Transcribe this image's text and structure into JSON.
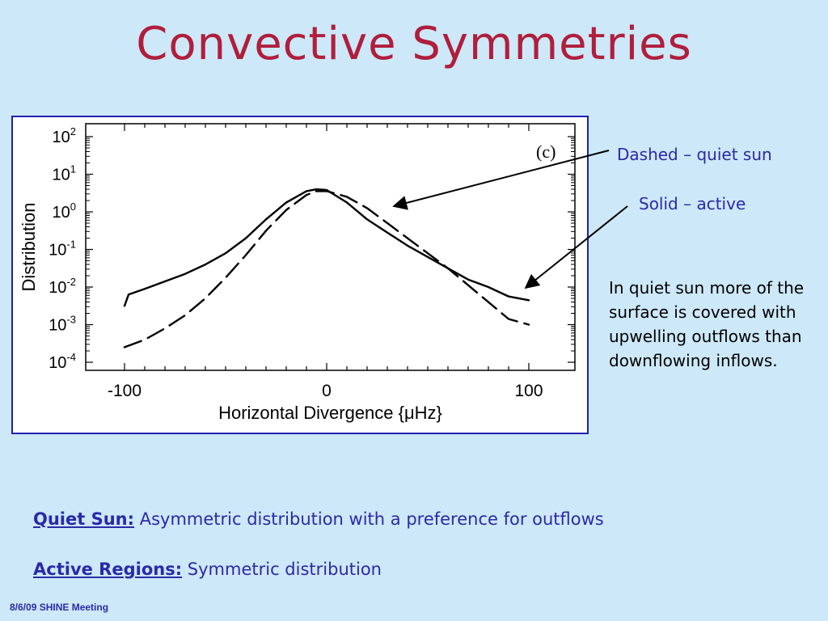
{
  "slide": {
    "title": "Convective Symmetries",
    "footer": "8/6/09 SHINE Meeting"
  },
  "annotations": {
    "dashed": "Dashed – quiet sun",
    "solid": "Solid – active",
    "note": "In quiet sun more of the surface is covered with upwelling outflows than downflowing inflows."
  },
  "summary": {
    "quiet_label": "Quiet Sun:",
    "quiet_text": "Asymmetric distribution with a preference for outflows",
    "active_label": "Active Regions:",
    "active_text": "Symmetric distribution"
  },
  "chart_data": {
    "type": "line",
    "panel_label": "(c)",
    "xlabel": "Horizontal Divergence {μHz}",
    "ylabel": "Distribution",
    "xlim": [
      -100,
      100
    ],
    "ylim_log10": [
      -4,
      2
    ],
    "y_scale": "log",
    "x_ticks": [
      "-100",
      "0",
      "100"
    ],
    "y_ticks": [
      {
        "base": "10",
        "exp": "2",
        "value": 2
      },
      {
        "base": "10",
        "exp": "1",
        "value": 1
      },
      {
        "base": "10",
        "exp": "0",
        "value": 0
      },
      {
        "base": "10",
        "exp": "-1",
        "value": -1
      },
      {
        "base": "10",
        "exp": "-2",
        "value": -2
      },
      {
        "base": "10",
        "exp": "-3",
        "value": -3
      },
      {
        "base": "10",
        "exp": "-4",
        "value": -4
      }
    ],
    "grid": false,
    "legend": "none",
    "series": [
      {
        "style": "solid",
        "color": "#000000",
        "x": [
          -100,
          -98,
          -90,
          -80,
          -70,
          -60,
          -50,
          -40,
          -30,
          -20,
          -10,
          -5,
          0,
          10,
          20,
          30,
          40,
          50,
          60,
          70,
          80,
          90,
          100
        ],
        "log10_y": [
          -2.5,
          -2.2,
          -2.05,
          -1.85,
          -1.65,
          -1.4,
          -1.1,
          -0.7,
          -0.2,
          0.25,
          0.55,
          0.6,
          0.58,
          0.25,
          -0.2,
          -0.55,
          -0.9,
          -1.2,
          -1.5,
          -1.8,
          -2.0,
          -2.25,
          -2.35
        ]
      },
      {
        "style": "dashed",
        "color": "#000000",
        "x": [
          -100,
          -90,
          -80,
          -70,
          -60,
          -50,
          -40,
          -30,
          -20,
          -10,
          -5,
          0,
          10,
          20,
          30,
          40,
          50,
          60,
          70,
          80,
          90,
          100
        ],
        "log10_y": [
          -3.6,
          -3.4,
          -3.1,
          -2.75,
          -2.3,
          -1.75,
          -1.15,
          -0.5,
          0.05,
          0.45,
          0.55,
          0.55,
          0.4,
          0.1,
          -0.3,
          -0.7,
          -1.1,
          -1.5,
          -1.95,
          -2.4,
          -2.85,
          -3.0
        ]
      }
    ]
  }
}
